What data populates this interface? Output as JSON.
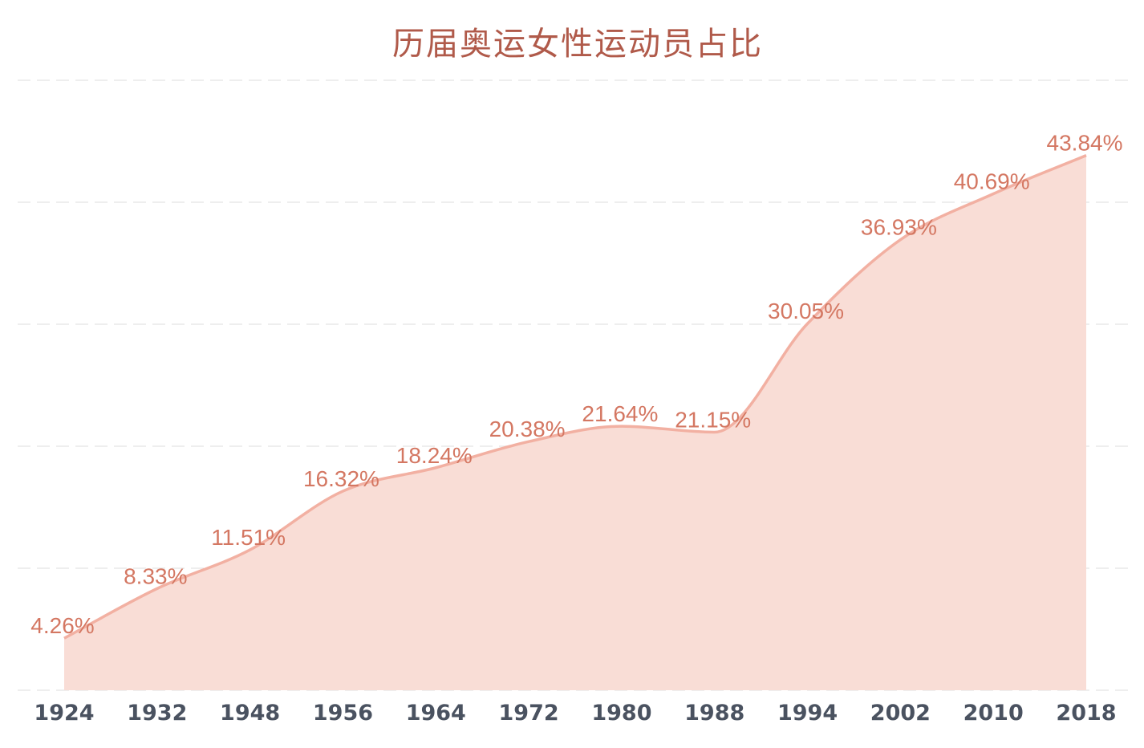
{
  "title": "历届奥运女性运动员占比",
  "colors": {
    "title": "#b05a4a",
    "line": "#f2b0a2",
    "area": "#f9ddd6",
    "label": "#d47762",
    "tick": "#4a5260",
    "grid": "#eeeeee"
  },
  "chart_data": {
    "type": "area",
    "title": "历届奥运女性运动员占比",
    "xlabel": "",
    "ylabel": "",
    "categories": [
      "1924",
      "1932",
      "1948",
      "1956",
      "1964",
      "1972",
      "1980",
      "1988",
      "1994",
      "2002",
      "2010",
      "2018"
    ],
    "values": [
      4.26,
      8.33,
      11.51,
      16.32,
      18.24,
      20.38,
      21.64,
      21.15,
      30.05,
      36.93,
      40.69,
      43.84
    ],
    "data_labels": [
      "4.26%",
      "8.33%",
      "11.51%",
      "16.32%",
      "18.24%",
      "20.38%",
      "21.64%",
      "21.15%",
      "30.05%",
      "36.93%",
      "40.69%",
      "43.84%"
    ],
    "unit": "%",
    "ylim": [
      0,
      50
    ],
    "y_grid_step": 10,
    "grid": true,
    "grid_style": "dashed",
    "y_axis_labels_visible": false,
    "smooth": true,
    "legend": null
  }
}
